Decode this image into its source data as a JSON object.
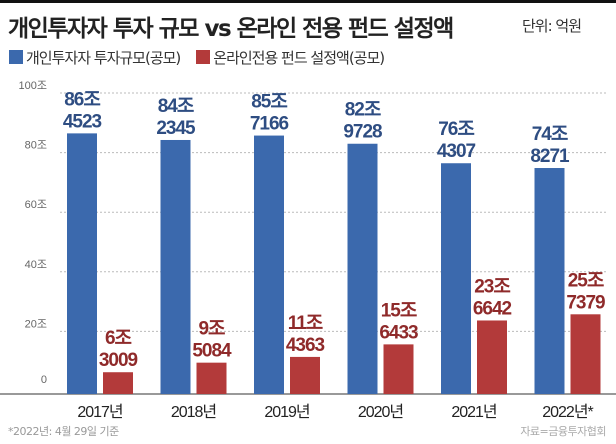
{
  "colors": {
    "blue": "#3b69ad",
    "red": "#b33a3a",
    "blue_text": "#2e4d82",
    "red_text": "#8f2a2a"
  },
  "title": "개인투자자 투자 규모 vs 온라인 전용 펀드 설정액",
  "unit": "단위: 억원",
  "footnote": "*2022년: 4월 29일 기준",
  "source": "자료=금융투자협회",
  "chart_data": {
    "type": "bar",
    "title": "개인투자자 투자 규모 vs 온라인 전용 펀드 설정액",
    "ylabel": "단위: 억원",
    "ylim": [
      0,
      1000000
    ],
    "yticks": [
      0,
      200000,
      400000,
      600000,
      800000,
      1000000
    ],
    "ytick_labels": [
      "0",
      "20조",
      "40조",
      "60조",
      "80조",
      "100조"
    ],
    "grid": true,
    "legend_position": "top-left",
    "categories": [
      "2017년",
      "2018년",
      "2019년",
      "2020년",
      "2021년",
      "2022년*"
    ],
    "series": [
      {
        "name": "개인투자자 투자규모(공모)",
        "values": [
          864523,
          842345,
          857166,
          829728,
          764307,
          748271
        ],
        "labels": [
          [
            "86조",
            "4523"
          ],
          [
            "84조",
            "2345"
          ],
          [
            "85조",
            "7166"
          ],
          [
            "82조",
            "9728"
          ],
          [
            "76조",
            "4307"
          ],
          [
            "74조",
            "8271"
          ]
        ]
      },
      {
        "name": "온라인전용 펀드 설정액(공모)",
        "values": [
          63009,
          95084,
          114363,
          156433,
          236642,
          257379
        ],
        "labels": [
          [
            "6조",
            "3009"
          ],
          [
            "9조",
            "5084"
          ],
          [
            "11조",
            "4363"
          ],
          [
            "15조",
            "6433"
          ],
          [
            "23조",
            "6642"
          ],
          [
            "25조",
            "7379"
          ]
        ]
      }
    ]
  }
}
